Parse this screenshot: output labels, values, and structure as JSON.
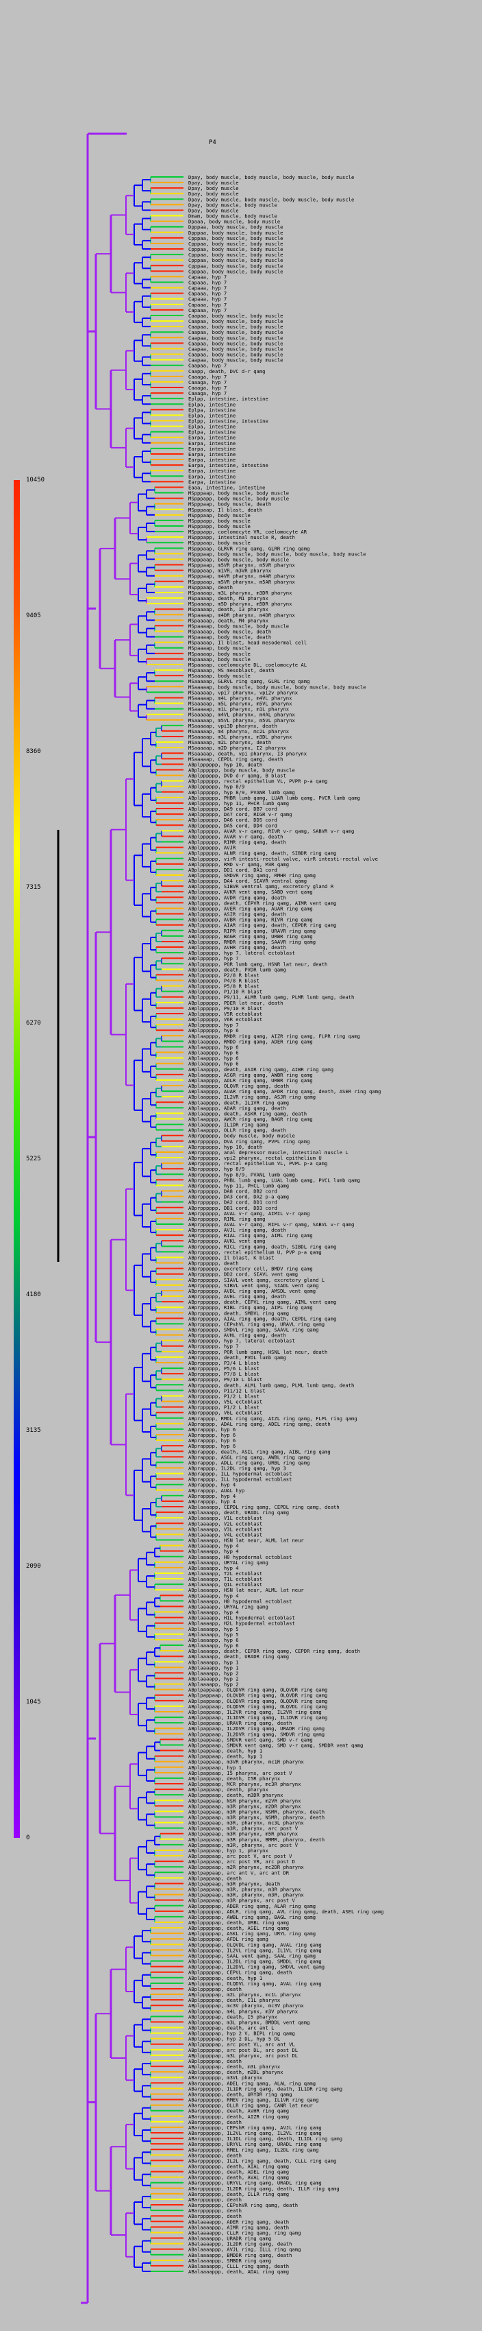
{
  "root_label": "P4",
  "legend": {
    "ticks": [
      "0",
      "1045",
      "2090",
      "3135",
      "4180",
      "5225",
      "6270",
      "7315",
      "8360",
      "9405",
      "10450"
    ],
    "colors": [
      "#9900ff",
      "#6600ee",
      "#2200dd",
      "#0000ff",
      "#006688",
      "#00cc33",
      "#44ee00",
      "#ccee00",
      "#ffff00",
      "#ffaa00",
      "#ff5500",
      "#ff2200"
    ]
  },
  "leaves": [
    "Dpay, body muscle, body muscle, body muscle, body muscle",
    "Dpay, body muscle",
    "Dpay, body muscle",
    "Dpay, body muscle",
    "Dpay, body muscle, body muscle, body muscle, body muscle",
    "Dpay, body muscle, body muscle",
    "Dpay, body muscle",
    "Dmam, body muscle, body muscle",
    "Dpaaa, body muscle, body muscle",
    "Dpppaa, body muscle, body muscle",
    "Dpppaa, body muscle, body muscle",
    "Cpppaa, body muscle, body muscle",
    "Cpppaa, body muscle, body muscle",
    "Cpppaa, body muscle, body muscle",
    "Cpppaa, body muscle, body muscle",
    "Cpppaa, body muscle, body muscle",
    "Cpppaa, body muscle, body muscle",
    "Cpppaa, body muscle, body muscle",
    "Capaaa, hyp 7",
    "Capaaa, hyp 7",
    "Capaaa, hyp 7",
    "Capaaa, hyp 7",
    "Capaaa, hyp 7",
    "Capaaa, hyp 7",
    "Capaaa, hyp 7",
    "Caapaa, body muscle, body muscle",
    "Caapaa, body muscle, body muscle",
    "Caapaa, body muscle, body muscle",
    "Caapaa, body muscle, body muscle",
    "Caapaa, body muscle, body muscle",
    "Caapaa, body muscle, body muscle",
    "Caapaa, body muscle, body muscle",
    "Caapaa, body muscle, body muscle",
    "Caapaa, body muscle, body muscle",
    "Caapaa, hyp 7",
    "Caapp, death, DVC d-r qamg",
    "Caaaga, hyp 7",
    "Caaaga, hyp 7",
    "Caaaga, hyp 7",
    "Caaaga, hyp 7",
    "Eplpp, intestine, intestine",
    "Eplpa, intestine",
    "Eplpa, intestine",
    "Eplpa, intestine",
    "Eplpp, intestine, intestine",
    "Eplpa, intestine",
    "Eplpa, intestine",
    "Earpa, intestine",
    "Earpa, intestine",
    "Earpa, intestine",
    "Earpa, intestine",
    "Earpa, intestine",
    "Earpa, intestine, intestine",
    "Earpa, intestine",
    "Earpa, intestine",
    "Earpa, intestine",
    "Eaaa, intestine, intestine",
    "MSpppaap, body muscle, body muscle",
    "MSpppapp, body muscle, body muscle",
    "MSpppaap, body muscle, death",
    "MSpppaap, Il blast, death",
    "MSpppaap, body muscle",
    "MSpppapp, body muscle",
    "MSpppapp, body muscle",
    "MSpppapp, coelomocyte VR, coelomocyte AR",
    "MSpppapp, intestinal muscle R, death",
    "MSpppaap, body muscle",
    "MSpppaap, GLRVR ring qamg, GLRR ring qamg",
    "MSpppaap, body muscle, body muscle, body muscle, body muscle",
    "MSpppaap, body muscle, body muscle",
    "MSpppaap, m5VR pharynx, m5VR pharynx",
    "MSpppaap, m1VR, m3VR pharynx",
    "MSpppaap, m4VR pharynx, m4AR pharynx",
    "MSpppaap, m5VR pharynx, m5AR pharynx",
    "MSpppaap, death",
    "MSpaaaap, m3L pharynx, m3DR pharynx",
    "MSpaaaap, death, M1 pharynx",
    "MSpaaaap, m5D pharynx, m5DR pharynx",
    "MSpaaaap, death, I3 pharynx",
    "MSpaaaap, m4DR pharynx, m4DR pharynx",
    "MSpaaaap, death, M4 pharynx",
    "MSpaaaap, body muscle, body muscle",
    "MSpaaaap, body muscle, death",
    "MSpaaaap, body muscle, death",
    "MSpaaaap, Il blast, head mesodermal cell",
    "MSpaaaap, body muscle",
    "MSpaaaap, body muscle",
    "MSpaaaap, body muscle",
    "MSpaaaap, coelomocyte DL, coelomocyte AL",
    "MSpaaaap, MS mesoblast, death",
    "MSaaaaap, body muscle",
    "MSaaaaap, GLRVL ring qamg, GLRL ring qamg",
    "MSaaaaap, body muscle, body muscle, body muscle, body muscle",
    "MSaaaaap, vpi7 pharynx, vpi2v pharynx",
    "MSaaaaap, m4L pharynx, m4VL pharynx",
    "MSaaaaap, m5L pharynx, m5VL pharynx",
    "MSaaaaap, m1L pharynx, m1L pharynx",
    "MSaaaaap, m4VL pharynx, m4AL pharynx",
    "MSaaaaap, m5VL pharynx, m5VL pharynx",
    "MSaaaaap, vpi3D pharynx, death",
    "MSaaaaap, m4 pharynx, mc2L pharynx",
    "MSaaaaap, m3L pharynx, m3DL pharynx",
    "MSaaaaap, m2L pharynx, death",
    "MSaaaaap, m2D pharynx, I2 pharynx",
    "MSaaaaap, death, vpi pharynx, I3 pharynx",
    "MSaaaaap, CEPDL ring qamg, death",
    "ABplpppppp, hyp 10, death",
    "ABplpppppp, body muscle, body muscle",
    "ABplpppppp, DVD d-r qamg, B blast",
    "ABplpppppp, rectal epithelium VL, PVPR p-a qamg",
    "ABplpppppp, hyp 8/9",
    "ABplpppppp, hyp 8/9, PVANR lumb qamg",
    "ABplpppppp, PHBR lumb qamg, LUAR lumb qamg, PVCR lumb qamg",
    "ABplpppppp, hyp 11, PHCR lumb qamg",
    "ABplpppppp, DA9 cord, DB7 cord",
    "ABplpppppp, DA7 cord, RIGR v-r qamg",
    "ABplpppppp, DA6 cord, DD5 cord",
    "ABplpppppp, DA5 cord, DD4 cord",
    "ABplpppppp, AVAR v-r qamg, RIVR v-r qamg, SABVR v-r qamg",
    "ABplpppppp, AVAR v-r qamg, death",
    "ABplpppppp, RIMR ring qamg, death",
    "ABplpppppp, AVJR",
    "ABplpppppp, ALNR ring qamg, death, SIBDR ring qamg",
    "ABplpppppp, virR intesti-rectal valve, virR intesti-rectal valve",
    "ABplpppppp, RMD v-r qamg, M3R qamg",
    "ABplpppppp, DD1 cord, DA1 cord",
    "ABplpppppp, SMDVR ring qamg, RMHR ring qamg",
    "ABplpppppp, DA4 cord, SIAVR ventral qamg",
    "ABplpppppp, SIBVR ventral qamg, excretory gland R",
    "ABplpppppp, AVKR vent qamg, SABD vent qamg",
    "ABplpppppp, AVDR ring qamg, death",
    "ABplpppppp, death, CEPVR ring qamg, AIMR vent qamg",
    "ABplpppppp, AVER ring qamg, AUAR ring qamg",
    "ABplpppppp, ASIR ring qamg, death",
    "ABplpppppp, AVBR ring qamg, RIVR ring qamg",
    "ABplpppppp, AIAR ring qamg, death, CEPDR ring qamg",
    "ABplpppppp, RIPR ring qamg, URAVR ring qamg",
    "ABplpppppp, BAGR ring qamg, URBR ring qamg",
    "ABplpppppp, RMDR ring qamg, SAAVR ring qamg",
    "ABplpppppp, AVHR ring qamg, death",
    "ABplpppppp, hyp 7, lateral ectoblast",
    "ABplpppppp, hyp 7",
    "ABplpppppp, PQR lumb qamg, HSNR lat neur, death",
    "ABplpppppp, death, PVDR lumb qamg",
    "ABplpppppp, P2/8 R blast",
    "ABplpppppp, P4/8 R blast",
    "ABplpppppp, P5/8 R blast",
    "ABplpppppp, P1/10 R blast",
    "ABplpppppp, P9/11, ALMR lumb qamg, PLMR lumb qamg, death",
    "ABplpppppp, PDER lat neur, death",
    "ABplpppppp, P9/10 R blast",
    "ABplpppppp, V5R ectoblast",
    "ABplpppppp, V6R ectoblast",
    "ABplpppppp, hyp 7",
    "ABplpppppp, hyp 6",
    "ABplaapppp, RMDR ring qamg, AIZR ring qamg, FLPR ring qamg",
    "ABplaapppp, RMDD ring qamg, ADER ring qamg",
    "ABplaapppp, hyp 6",
    "ABplaapppp, hyp 6",
    "ABplaapppp, hyp 6",
    "ABplaapppp, hyp 6",
    "ABplaapppp, death, ASIR ring qamg, AIBR ring qamg",
    "ABplaapppp, ASGR ring qamg, AWBR ring qamg",
    "ABplaapppp, ADLR ring qamg, URBR ring qamg",
    "ABplaapppp, OLQVR ring qamg, death",
    "ABplaapppp, AUAR ring qamg, AFDR ring qamg, death, ASER ring qamg",
    "ABplaapppp, IL2VR ring qamg, ASJR ring qamg",
    "ABplaapppp, death, IL1VR ring qamg",
    "ABplaapppp, ADAR ring qamg, death",
    "ABplaapppp, death, ASKR ring qamg, death",
    "ABplaapppp, AWCR ring qamg, BAGR ring qamg",
    "ABplaapppp, IL1DR ring qamg",
    "ABplaapppp, OLLR ring qamg, death",
    "ABprpppppp, body muscle, body muscle",
    "ABprpppppp, DVA ring qamg, PVPL ring qamg",
    "ABprpppppp, hyp 10, death",
    "ABprpppppp, anal depressor muscle, intestinal muscle L",
    "ABprpppppp, vpi2 pharynx, rectal epithelium U",
    "ABprpppppp, rectal epithelium VL, PVPL p-a qamg",
    "ABprpppppp, hyp 8/9",
    "ABprpppppp, hyp 8/9, PVANL lumb qamg",
    "ABprpppppp, PHBL lumb qamg, LUAL lumb qamg, PVCL lumb qamg",
    "ABprpppppp, hyp 11, PHCL lumb qamg",
    "ABprpppppp, DA8 cord, DB2 cord",
    "ABprpppppp, DA3 cord, DA2 p-a qamg",
    "ABprpppppp, DA2 cord, DD1 cord",
    "ABprpppppp, DB1 cord, DD3 cord",
    "ABprpppppp, AVAL v-r qamg, AIMIL v-r qamg",
    "ABprpppppp, RIML ring qamg",
    "ABprpppppp, AVAL v-r qamg, RIFL v-r qamg, SABVL v-r qamg",
    "ABprpppppp, AVJL ring qamg, death",
    "ABprpppppp, RIAL ring qamg, AIML ring qamg",
    "ABprpppppp, AVKL vent qamg",
    "ABprpppppp, RICL ring qamg, death, SIBDL ring qamg",
    "ABprpppppp, rectal epithelium U, PVP p-a qamg",
    "ABprpppppp, Il blast, K blast",
    "ABprpppppp, death",
    "ABprpppppp, excretory cell, BMDV ring qamg",
    "ABprpppppp, DD2 cord, SIAVL vent qamg",
    "ABprpppppp, SIAVL vent qamg, excretory gland L",
    "ABprpppppp, SIBVL vent qamg, SIADL vent qamg",
    "ABprpppppp, AVDL ring qamg, AMSDL vent qamg",
    "ABprpppppp, AVEL ring qamg, death",
    "ABprpppppp, death, CEPVL ring qamg, AIML vent qamg",
    "ABprpppppp, RIBL ring qamg, AIPL ring qamg",
    "ABprpppppp, death, SMBVL ring qamg",
    "ABprpppppp, AIAL ring qamg, death, CEPDL ring qamg",
    "ABprpppppp, CEPshVL ring qamg, URAVL ring qamg",
    "ABprpppppp, SMDVL ring qamg, SAAVL ring qamg",
    "ABprpppppp, AVHL ring qamg, death",
    "ABprpppppp, hyp 7, lateral ectoblast",
    "ABprpppppp, hyp 7",
    "ABprpppppp, PQR lumb qamg, HSNL lat neur, death",
    "ABprpppppp, death, PVDL lumb qamg",
    "ABprpppppp, P3/4 L blast",
    "ABprpppppp, P5/6 L blast",
    "ABprpppppp, P7/8 L blast",
    "ABprpppppp, P9/10 L blast",
    "ABprpppppp, death, ALML lumb qamg, PLML lumb qamg, death",
    "ABprpppppp, P11/12 L blast",
    "ABprpppppp, P1/2 L blast",
    "ABprpppppp, V5L ectoblast",
    "ABprpppppp, P1/2 L blast",
    "ABprpppppp, V6L ectoblast",
    "ABprapppp, RMDL ring qamg, AIZL ring qamg, FLPL ring qamg",
    "ABprapppp, ADAL ring qamg, ADEL ring qamg, death",
    "ABprapppp, hyp 6",
    "ABprapppp, hyp 6",
    "ABprapppp, hyp 6",
    "ABprapppp, hyp 6",
    "ABprapppp, death, ASIL ring qamg, AIBL ring qamg",
    "ABprapppp, ASGL ring qamg, AWBL ring qamg",
    "ABprapppp, ADLL ring qamg, URBL ring qamg",
    "ABprapppp, IL2DL ring qamg, hyp 3",
    "ABprapppp, ILL hypodermal ectoblast",
    "ABprapppp, ILL hypodermal ectoblast",
    "ABprapppp, hyp 4",
    "ABprapppp, AUAL hyp",
    "ABprapppp, hyp 4",
    "ABprapppp, hyp 4",
    "ABplaaaapp, CEPDL ring qamg, CEPDL ring qamg, death",
    "ABplaaaapp, death, URADL ring qamg",
    "ABplaaaapp, V1L ectoblast",
    "ABplaaaapp, V2L ectoblast",
    "ABplaaaapp, V3L ectoblast",
    "ABplaaaapp, V4L ectoblast",
    "ABplaaaapp, HSN lat neur, ALML lat neur",
    "ABplaaaapp, hyp 4",
    "ABplaaaapp, hyp 4",
    "ABplaaaapp, H0 hypodermal ectoblast",
    "ABplaaaapp, URYAL ring qamg",
    "ABplaaaapp, hyp 4",
    "ABplaaaapp, T2L ectoblast",
    "ABplaaaapp, T1L ectoblast",
    "ABplaaaapp, Q1L ectoblast",
    "ABplaaaapp, HSN lat neur, ALML lat neur",
    "ABplaaaapp, hyp 4",
    "ABplaaaapp, H0 hypodermal ectoblast",
    "ABplaaaapp, URYAL ring qamg",
    "ABplaaaapp, hyp 4",
    "ABplaaaapp, H1L hypodermal ectoblast",
    "ABplaaaapp, H2L hypodermal ectoblast",
    "ABplaaaapp, hyp 5",
    "ABplaaaapp, hyp 5",
    "ABplaaaapp, hyp 6",
    "ABplaaaapp, hyp 6",
    "ABplaaaapp, death, CEPDR ring qamg, CEPDR ring qamg, death",
    "ABplaaaapp, death, URADR ring qamg",
    "ABplaaaapp, hyp 1",
    "ABplaaaapp, hyp 1",
    "ABplaaaapp, hyp 2",
    "ABplaaaapp, hyp 2",
    "ABplaaaapp, hyp 2",
    "ABplpappaap, OLQDVR ring qamg, OLQVDR ring qamg",
    "ABplpappaap, OLQVDR ring qamg, OLQVDR ring qamg",
    "ABplpappaap, OLQDVR ring qamg, OLQDVR ring qamg",
    "ABplpappaap, OLQDVR ring qamg, OLQVDL ring qamg",
    "ABplpappaap, IL2VR ring qamg, IL2VR ring qamg",
    "ABplpappaap, IL1DVR ring qamg, IL1DVR ring qamg",
    "ABplpappaap, URAVR ring qamg, death",
    "ABplpappaap, IL2DVR ring qamg, URADR ring qamg",
    "ABplpappaap, IL2DVR ring qamg, SMDVR ring qamg",
    "ABplpappaap, SMDVR vent qamg, SMD v-r qamg",
    "ABplpappaap, SMDVR vent qamg, SMD v-r qamg, SMDDR vent qamg",
    "ABplpappaap, death, hyp 1",
    "ABplpappaap, death, hyp 1",
    "ABplpappaap, m3VR pharynx, mc1R pharynx",
    "ABplpappaap, hyp 1",
    "ABplpappaap, I5 pharynx, arc post V",
    "ABplpappaap, death, I5R pharynx",
    "ABplpappaap, MCR pharynx, mc3R pharynx",
    "ABplpappaap, death, pharynx",
    "ABplpappaap, death, m3DR pharynx",
    "ABplpappaap, NSM pharynx, m2VR pharynx",
    "ABplpappaap, m3R pharynx, m2DR pharynx",
    "ABplpappaap, m3R pharynx, NSMR, pharynx, death",
    "ABplpappaap, m3R pharynx, NSMR, pharynx, death",
    "ABplpappaap, m3R, pharynx, mc3L pharynx",
    "ABplpappaap, m3R, pharynx, arc post V",
    "ABplpappaap, m3R pharynx, m5R pharynx",
    "ABplpappaap, m3R pharynx, BMMR, pharynx, death",
    "ABplpappaap, m3R, pharynx, arc post V",
    "ABplpappaap, hyp 1, pharynx",
    "ABplpappaap, arc post V, arc post V",
    "ABplpappaap, arc post VR, arc post D",
    "ABplpappaap, m2R pharynx, mc2DR pharynx",
    "ABplpappaap, arc ant V, arc ant DR",
    "ABplpappaap, death",
    "ABplpappaap, m3R pharynx, death",
    "ABplpappaap, m3R, pharynx, m3R pharynx",
    "ABplpappaap, m3R, pharynx, m3R, pharynx",
    "ABplpappaap, m3R pharynx, arc post V",
    "ABplpppppap, ADER ring qamg, ALAR ring qamg",
    "ABplpppppap, ADLR, ring qamg, AVL ring qamg, death, ASEL ring qamg",
    "ABplpppppap, AWBL ring qamg, BAGL ring qamg",
    "ABplpppppap, death, URBL ring qamg",
    "ABplpppppap, death, ASEL ring qamg",
    "ABplpppppap, ASKL ring qamg, URYL ring qamg",
    "ABplpppppap, AFDL ring qamg",
    "ABplpppppap, OLQVDL ring qamg, AVAL ring qamg",
    "ABplpppppap, IL2VL ring qamg, IL1VL ring qamg",
    "ABplpppppap, SAAL vent qamg, SAAL ring qamg",
    "ABplpppppap, IL2DL ring qamg, SMDDL ring qamg",
    "ABplpppppap, IL2DVL ring qamg, SMDVL vent qamg",
    "ABplpppppap, CEPVL ring qamg, death",
    "ABplpppppap, death, hyp 1",
    "ABplpppppap, OLQDVL ring qamg, AVAL ring qamg",
    "ABplpppppap, death",
    "ABplpppppap, m2L pharynx, mc1L pharynx",
    "ABplpppppap, death, I1L pharynx",
    "ABplpppppap, mc3V pharynx, mc3V pharynx",
    "ABplpppppap, m4L pharynx, m3V pharynx",
    "ABplpppppap, death, I5 pharynx",
    "ABplpppppap, m3L pharynx, BMDDL vent qamg",
    "ABplpppppap, death, arc ant L",
    "ABplpppppap, hyp 2 V, BIPL ring qamg",
    "ABplpppppap, hyp 2 DL, hyp 5 DL",
    "ABplpppppap, arc post VL, arc ant VL",
    "ABplpppppap, arc post DL, arc post DL",
    "ABplpppppap, m3L pharynx, arc post DL",
    "ABplpppppap, death",
    "ABplpppppap, death, m3L pharynx",
    "ABplpppppap, death, m2DL pharynx",
    "ABarppppppp, m3VL pharynx",
    "ABarppppppp, ADEL ring qamg, ALAL ring qamg",
    "ABarppppppp, IL1DR ring qamg, death, IL1DR ring qamg",
    "ABarppppppp, death, URYDR ring qamg",
    "ABarppppppp, RMEV ring qamg, IL1VR ring qamg",
    "ABarppppppp, OLLR ring qamg, CANR lat neur",
    "ABarppppppp, death, AVHR ring qamg",
    "ABarppppppp, death, AIZR ring qamg",
    "ABarppppppp, death",
    "ABarppppppp, CEPshR ring qamg, AVJL ring qamg",
    "ABarppppppp, IL2VL ring qamg, IL2VL ring qamg",
    "ABarppppppp, IL1DL ring qamg, death, IL1DL ring qamg",
    "ABarppppppp, URYVL ring qamg, URADL ring qamg",
    "ABarppppppp, RMEL ring qamg, IL2DL ring qamg",
    "ABarppppppp, death",
    "ABarppppppp, IL2L ring qamg, death, CLLL ring qamg",
    "ABarppppppp, death, AIAL ring qamg",
    "ABarppppppp, death, ADEL ring qamg",
    "ABarppppppp, death, AVAL ring qamg",
    "ABarppppppp, URYVL ring qamg, URADL ring qamg",
    "ABarppppppp, IL2DR ring qamg, death, ILLR ring qamg",
    "ABarppppppp, death, ILLR ring qamg",
    "ABarppppppp, death",
    "ABarppppppp, CEPshVR ring qamg, death",
    "ABarppppppp, death",
    "ABarppppppp, death",
    "ABalaaaappp, ADER ring qamg, death",
    "ABalaaaappp, AIMR ring qamg, death",
    "ABalaaaappp, CLLR ring qamg, ring qamg",
    "ABalaaaappp, URADR ring qamg",
    "ABalaaaappp, IL2DR ring qamg, death",
    "ABalaaaappp, AVJL ring, ILLL ring qamg",
    "ABalaaaappp, BMDDR ring qamg, death",
    "ABalaaaappp, SMBDR ring qamg",
    "ABalaaaappp, CLLL ring qamg, death",
    "ABalaaaappp, death, ADAL ring qamg"
  ]
}
